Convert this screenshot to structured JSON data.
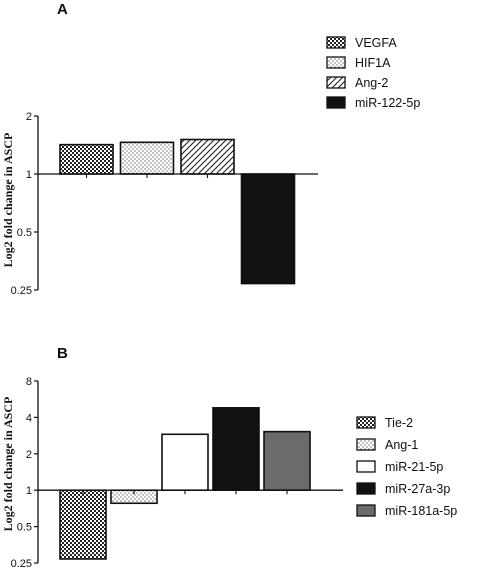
{
  "chart_data": [
    {
      "panel": "A",
      "type": "bar",
      "scale": "log2",
      "ylabel": "Log2 fold change in ASCP",
      "yticks": [
        0.25,
        0.5,
        1,
        2
      ],
      "ytick_labels": [
        "0.25",
        "0.5",
        "1",
        "2"
      ],
      "ylim": [
        0.25,
        2
      ],
      "baseline": 1,
      "legend_position": "top-right",
      "categories": [
        "VEGFA",
        "HIF1A",
        "Ang-2",
        "miR-122-5p"
      ],
      "values": [
        1.42,
        1.46,
        1.51,
        0.27
      ],
      "patterns": [
        "crosshatch",
        "dots",
        "diagonal",
        "solid-black"
      ]
    },
    {
      "panel": "B",
      "type": "bar",
      "scale": "log2",
      "ylabel": "Log2 fold change in ASCP",
      "yticks": [
        0.25,
        0.5,
        1,
        2,
        4,
        8
      ],
      "ytick_labels": [
        "0.25",
        "0.5",
        "1",
        "2",
        "4",
        "8"
      ],
      "ylim": [
        0.25,
        8
      ],
      "baseline": 1,
      "legend_position": "bottom-right",
      "categories": [
        "Tie-2",
        "Ang-1",
        "miR-21-5p",
        "miR-27a-3p",
        "miR-181a-5p"
      ],
      "values": [
        0.27,
        0.78,
        2.9,
        4.8,
        3.05
      ],
      "patterns": [
        "crosshatch",
        "dots",
        "white",
        "solid-black",
        "solid-gray"
      ]
    }
  ],
  "colors": {
    "black": "#111111",
    "gray": "#6b6b6b",
    "white": "#ffffff"
  }
}
